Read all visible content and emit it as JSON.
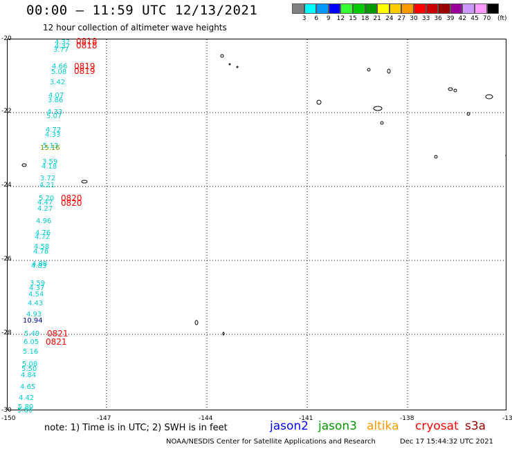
{
  "header": {
    "title": "00:00 — 11:59 UTC 12/13/2021",
    "subtitle": "12 hour collection of altimeter wave heights"
  },
  "colorbar": {
    "unit": "(ft)",
    "items": [
      {
        "label": "3",
        "color": "#808080"
      },
      {
        "label": "6",
        "color": "#00ffff"
      },
      {
        "label": "9",
        "color": "#0099ff"
      },
      {
        "label": "12",
        "color": "#0000ff"
      },
      {
        "label": "15",
        "color": "#33ff33"
      },
      {
        "label": "18",
        "color": "#00cc00"
      },
      {
        "label": "21",
        "color": "#009900"
      },
      {
        "label": "24",
        "color": "#ffff00"
      },
      {
        "label": "27",
        "color": "#ffcc00"
      },
      {
        "label": "30",
        "color": "#ff9900"
      },
      {
        "label": "33",
        "color": "#ff0000"
      },
      {
        "label": "36",
        "color": "#cc0000"
      },
      {
        "label": "39",
        "color": "#990000"
      },
      {
        "label": "42",
        "color": "#990099"
      },
      {
        "label": "45",
        "color": "#cc99ff"
      },
      {
        "label": "70",
        "color": "#ff99ff"
      },
      {
        "label": "",
        "color": "#000000"
      }
    ]
  },
  "axes": {
    "y_ticks": [
      "-20",
      "-22",
      "-24",
      "-26",
      "-28",
      "-30"
    ],
    "x_ticks": [
      "-150",
      "-147",
      "-144",
      "-141",
      "-138",
      "-13"
    ]
  },
  "wave_heights": [
    {
      "v": "4.32",
      "c": "#00cccc"
    },
    {
      "v": "4.37",
      "c": "#00cccc"
    },
    {
      "v": "3.77",
      "c": "#00cccc"
    },
    {
      "v": "4.66",
      "c": "#00cccc"
    },
    {
      "v": "5.08",
      "c": "#00cccc"
    },
    {
      "v": "3.42",
      "c": "#00cccc"
    },
    {
      "v": "4.07",
      "c": "#00cccc"
    },
    {
      "v": "3.86",
      "c": "#00cccc"
    },
    {
      "v": "4.33",
      "c": "#00cccc"
    },
    {
      "v": "5.07",
      "c": "#00cccc"
    },
    {
      "v": "4.72",
      "c": "#00cccc"
    },
    {
      "v": "4.33",
      "c": "#00cccc"
    },
    {
      "v": "5.13",
      "c": "#00cccc"
    },
    {
      "v": "15.16",
      "c": "#669900"
    },
    {
      "v": "3.59",
      "c": "#00cccc"
    },
    {
      "v": "4.18",
      "c": "#00cccc"
    },
    {
      "v": "3.72",
      "c": "#00cccc"
    },
    {
      "v": "4.21",
      "c": "#00cccc"
    },
    {
      "v": "5.20",
      "c": "#00cccc"
    },
    {
      "v": "4.47",
      "c": "#00cccc"
    },
    {
      "v": "4.27",
      "c": "#00cccc"
    },
    {
      "v": "4.96",
      "c": "#00cccc"
    },
    {
      "v": "4.76",
      "c": "#00cccc"
    },
    {
      "v": "4.72",
      "c": "#00cccc"
    },
    {
      "v": "4.58",
      "c": "#00cccc"
    },
    {
      "v": "4.78",
      "c": "#00cccc"
    },
    {
      "v": "4.88",
      "c": "#00cccc"
    },
    {
      "v": "4.83",
      "c": "#00cccc"
    },
    {
      "v": "3.59",
      "c": "#00cccc"
    },
    {
      "v": "4.37",
      "c": "#00cccc"
    },
    {
      "v": "4.54",
      "c": "#00cccc"
    },
    {
      "v": "4.43",
      "c": "#00cccc"
    },
    {
      "v": "4.93",
      "c": "#00cccc"
    },
    {
      "v": "10.94",
      "c": "#000099"
    },
    {
      "v": "5.49",
      "c": "#00cccc"
    },
    {
      "v": "6.05",
      "c": "#00cccc"
    },
    {
      "v": "5.16",
      "c": "#00cccc"
    },
    {
      "v": "5.08",
      "c": "#00cccc"
    },
    {
      "v": "5.50",
      "c": "#00cccc"
    },
    {
      "v": "4.84",
      "c": "#00cccc"
    },
    {
      "v": "4.65",
      "c": "#00cccc"
    },
    {
      "v": "4.42",
      "c": "#00cccc"
    },
    {
      "v": "5.80",
      "c": "#00cccc"
    },
    {
      "v": "5.86",
      "c": "#00cccc"
    }
  ],
  "time_labels": [
    "0818",
    "0818",
    "0819",
    "0819",
    "0820",
    "0820",
    "0821",
    "0821"
  ],
  "footer": {
    "note": "note: 1) Time is in UTC; 2) SWH is in feet",
    "satellites": [
      {
        "name": "jason2",
        "color": "#0000ff"
      },
      {
        "name": "jason3",
        "color": "#009900"
      },
      {
        "name": "altika",
        "color": "#ff9900"
      },
      {
        "name": "cryosat",
        "color": "#ff0000"
      },
      {
        "name": "s3a",
        "color": "#990000"
      }
    ],
    "credit": "NOAA/NESDIS Center for Satellite Applications and Research",
    "timestamp": "Dec 17 15:44:32 UTC 2021"
  }
}
